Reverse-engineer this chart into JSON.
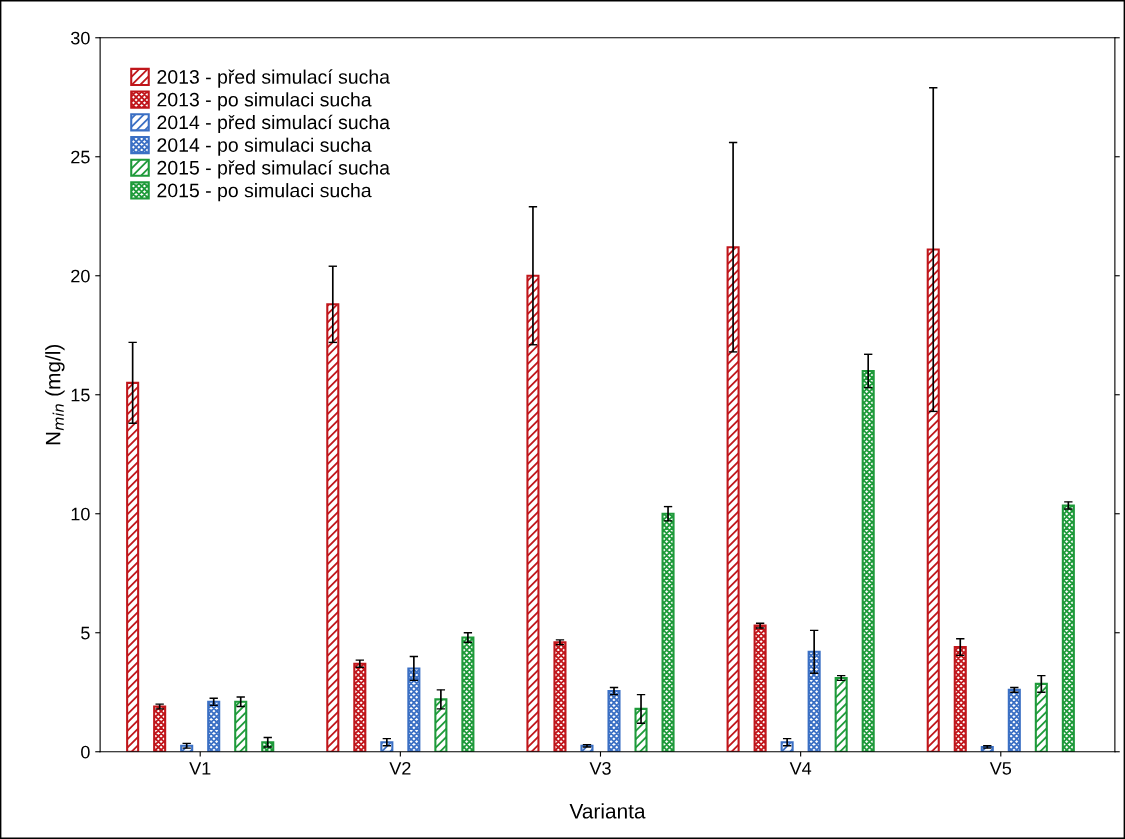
{
  "chart_data": {
    "type": "bar",
    "xlabel": "Varianta",
    "ylabel": "N$_{min}$ (mg/l)",
    "categories": [
      "V1",
      "V2",
      "V3",
      "V4",
      "V5"
    ],
    "ylim": [
      0,
      30
    ],
    "yticks": [
      0,
      5,
      10,
      15,
      20,
      25,
      30
    ],
    "grid": false,
    "legend": "top left",
    "series": [
      {
        "name": "2013 - před simulací sucha",
        "color": "#c0161b",
        "values": [
          15.5,
          18.8,
          20.0,
          21.2,
          21.1
        ],
        "errors": [
          1.7,
          1.6,
          2.9,
          4.4,
          6.8
        ]
      },
      {
        "name": "2013 - po simulaci sucha",
        "color": "#c0161b",
        "values": [
          1.9,
          3.7,
          4.6,
          5.3,
          4.4
        ],
        "errors": [
          0.1,
          0.15,
          0.1,
          0.1,
          0.35
        ]
      },
      {
        "name": "2014 - před simulací sucha",
        "color": "#3a6fc4",
        "values": [
          0.25,
          0.4,
          0.25,
          0.4,
          0.2
        ],
        "errors": [
          0.1,
          0.15,
          0.05,
          0.15,
          0.05
        ]
      },
      {
        "name": "2014 - po simulaci sucha",
        "color": "#3a6fc4",
        "values": [
          2.1,
          3.5,
          2.55,
          4.2,
          2.6
        ],
        "errors": [
          0.15,
          0.5,
          0.15,
          0.9,
          0.1
        ]
      },
      {
        "name": "2015 - před simulací sucha",
        "color": "#1e9a3a",
        "values": [
          2.1,
          2.2,
          1.8,
          3.1,
          2.85
        ],
        "errors": [
          0.2,
          0.4,
          0.6,
          0.1,
          0.35
        ]
      },
      {
        "name": "2015 - po simulaci sucha",
        "color": "#1e9a3a",
        "values": [
          0.4,
          4.8,
          10.0,
          16.0,
          10.35
        ],
        "errors": [
          0.2,
          0.2,
          0.3,
          0.7,
          0.15
        ]
      }
    ]
  }
}
